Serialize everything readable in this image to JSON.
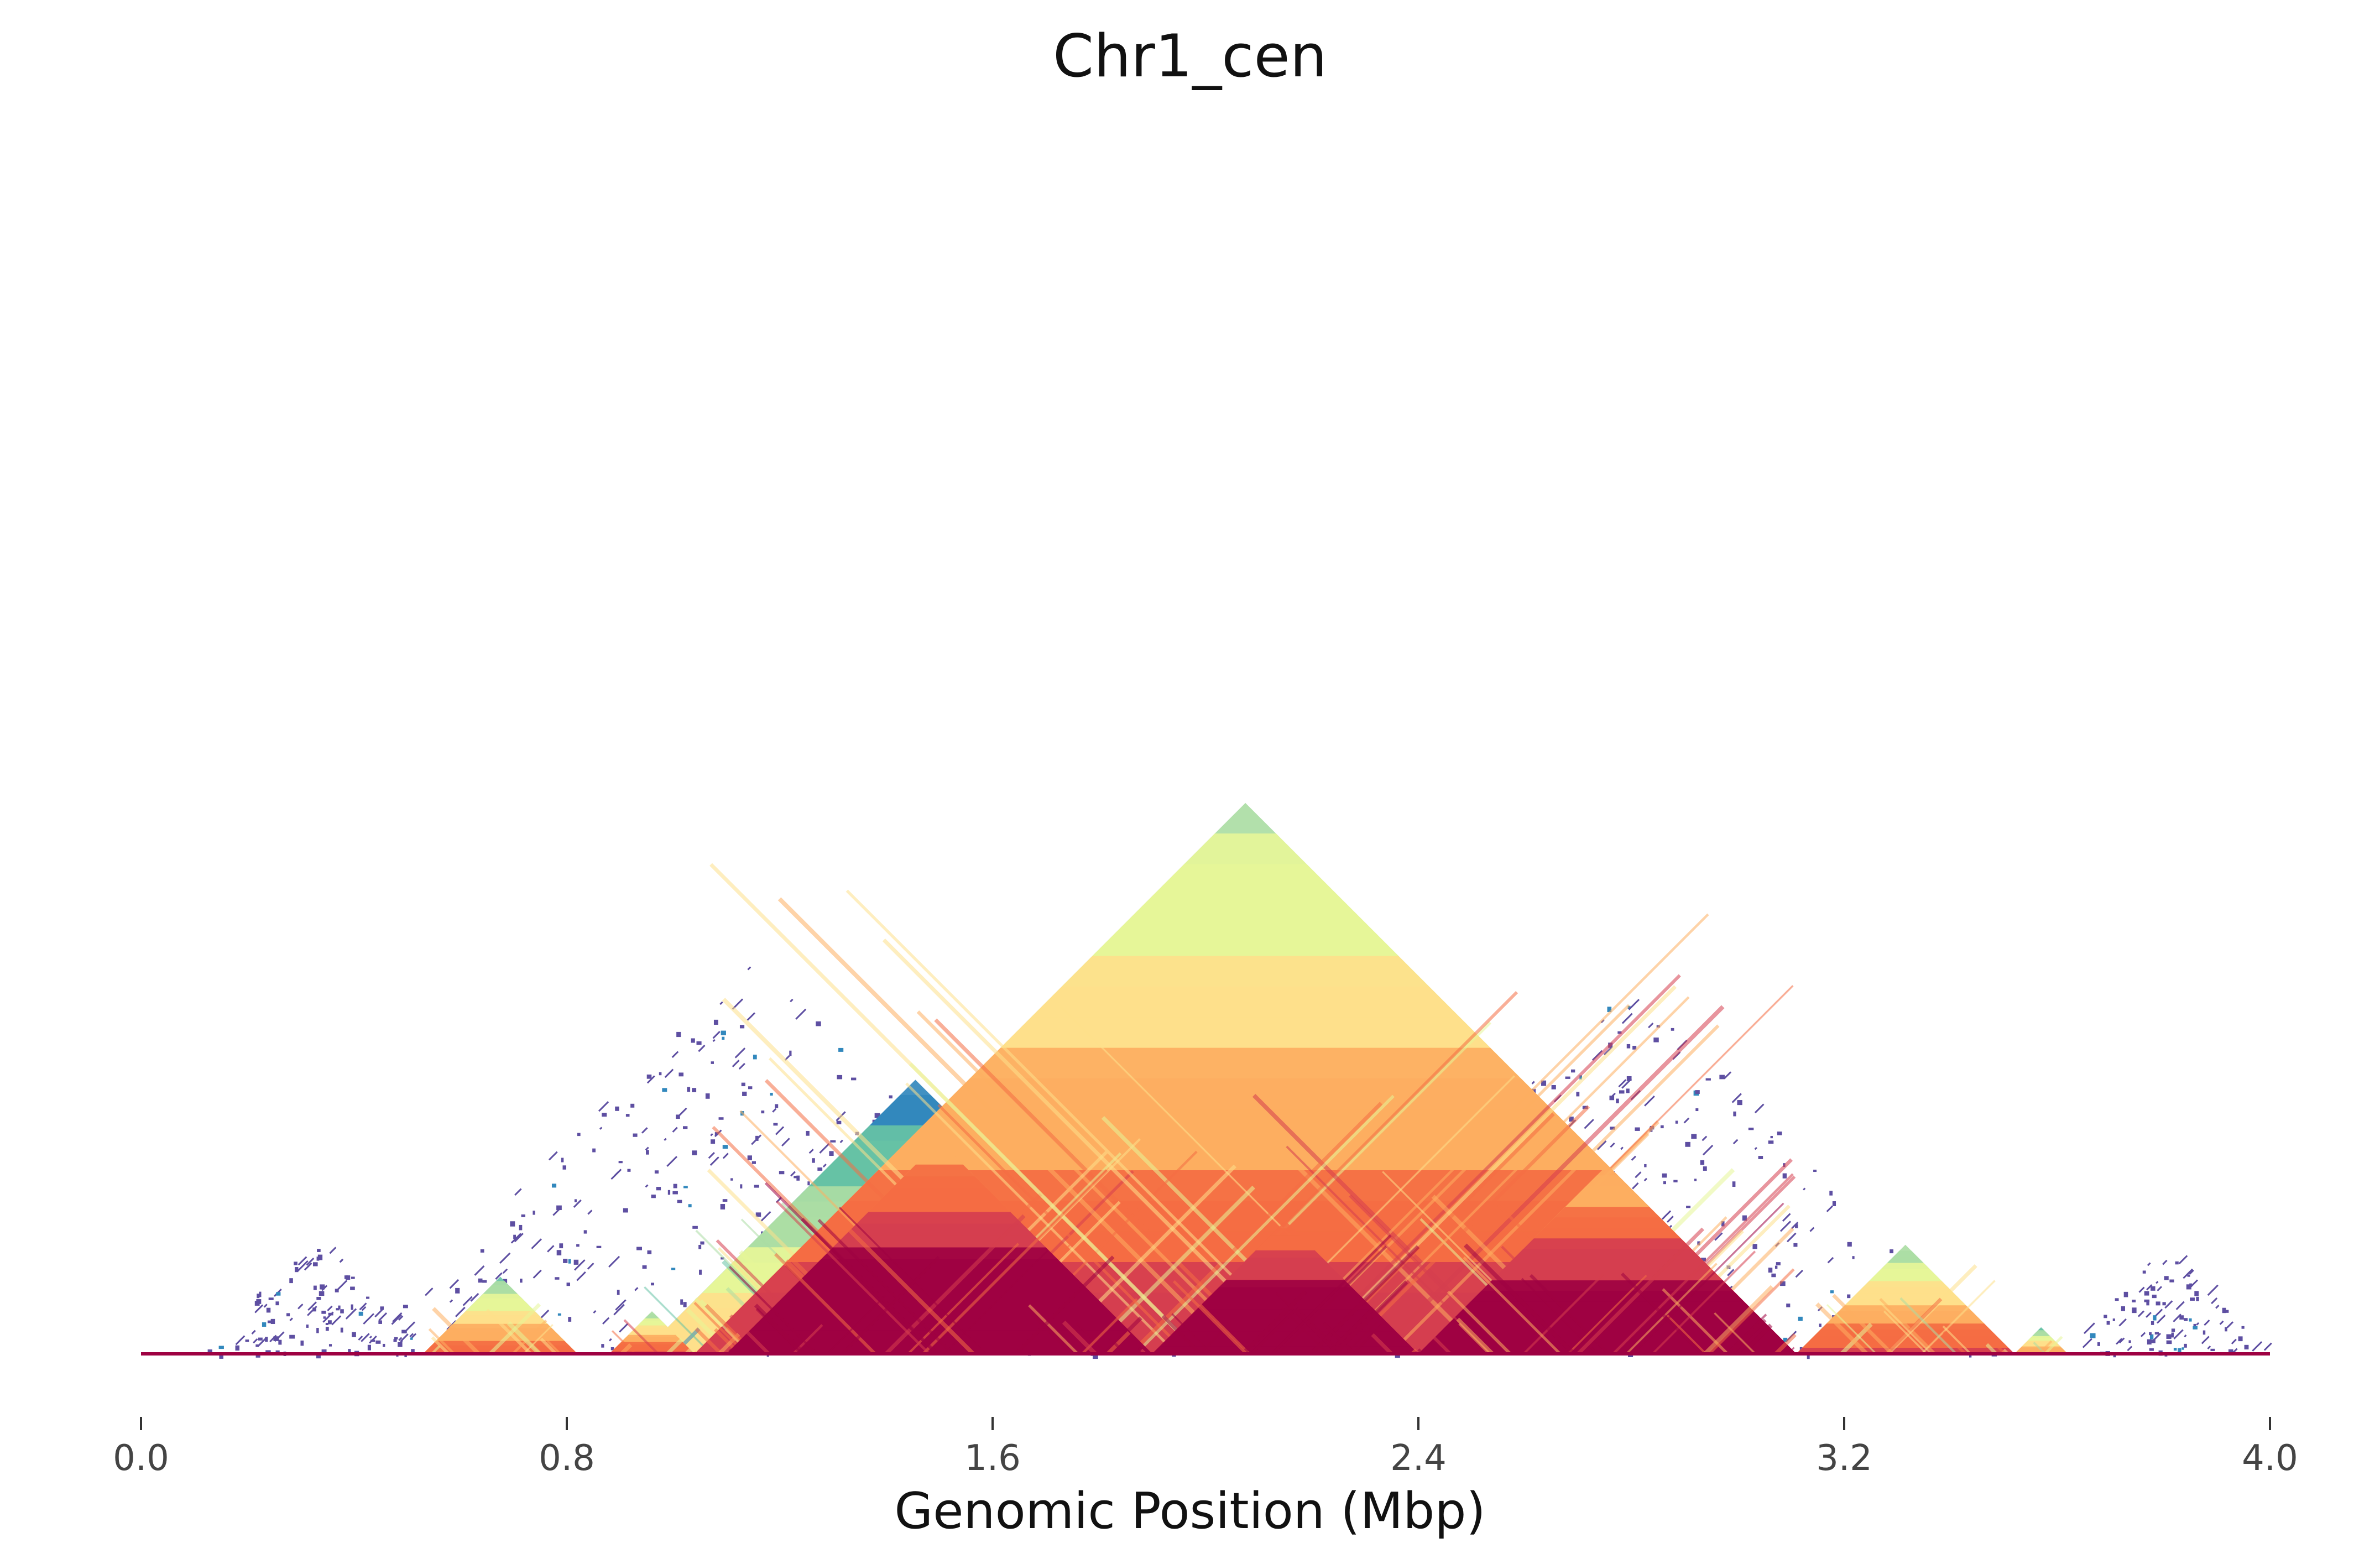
{
  "chart_data": {
    "type": "heatmap",
    "subtype": "triangular-contact-map",
    "title": "Chr1_cen",
    "xlabel": "Genomic Position (Mbp)",
    "ylabel": "",
    "xlim": [
      0.0,
      4.0
    ],
    "x_ticks": [
      {
        "value": 0.0,
        "label": "0.0"
      },
      {
        "value": 0.8,
        "label": "0.8"
      },
      {
        "value": 1.6,
        "label": "1.6"
      },
      {
        "value": 2.4,
        "label": "2.4"
      },
      {
        "value": 3.2,
        "label": "3.2"
      },
      {
        "value": 4.0,
        "label": "4.0"
      }
    ],
    "grid": false,
    "legend": "none",
    "colormap": [
      "#5e4fa2",
      "#3288bd",
      "#66c2a5",
      "#abdda4",
      "#e6f598",
      "#fee08b",
      "#fdae61",
      "#f46d43",
      "#d53e4f",
      "#9e0142"
    ],
    "domains": [
      {
        "start": 0.53,
        "end": 0.82,
        "intensity": 0.55
      },
      {
        "start": 0.88,
        "end": 1.04,
        "intensity": 0.6
      },
      {
        "start": 0.94,
        "end": 1.97,
        "intensity": 0.35
      },
      {
        "start": 1.04,
        "end": 3.11,
        "intensity": 0.65
      },
      {
        "start": 1.1,
        "end": 1.9,
        "intensity": 0.95
      },
      {
        "start": 1.9,
        "end": 2.4,
        "intensity": 1.0
      },
      {
        "start": 2.4,
        "end": 3.11,
        "intensity": 0.9
      },
      {
        "start": 3.11,
        "end": 3.52,
        "intensity": 0.6
      },
      {
        "start": 3.52,
        "end": 3.62,
        "intensity": 0.5
      }
    ],
    "sparse_regions": [
      {
        "start": 0.1,
        "end": 0.55
      },
      {
        "start": 0.4,
        "end": 1.9
      },
      {
        "start": 1.6,
        "end": 2.4
      },
      {
        "start": 2.1,
        "end": 3.5
      },
      {
        "start": 3.6,
        "end": 4.0
      }
    ]
  }
}
